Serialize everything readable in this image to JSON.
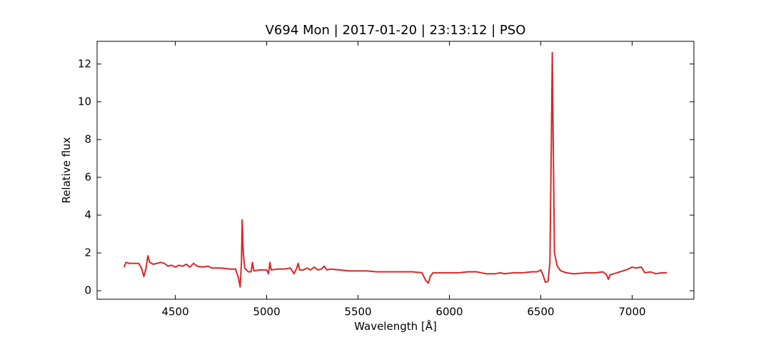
{
  "chart_data": {
    "type": "line",
    "title": "V694 Mon | 2017-01-20 | 23:13:12 | PSO",
    "xlabel": "Wavelength [Å]",
    "ylabel": "Relative flux",
    "color": "#d62728",
    "x": [
      4220,
      4230,
      4250,
      4280,
      4300,
      4315,
      4328,
      4340,
      4350,
      4360,
      4380,
      4400,
      4420,
      4440,
      4460,
      4480,
      4500,
      4520,
      4540,
      4560,
      4580,
      4600,
      4620,
      4650,
      4680,
      4700,
      4750,
      4800,
      4830,
      4845,
      4855,
      4862,
      4866,
      4872,
      4880,
      4900,
      4915,
      4922,
      4930,
      4960,
      5000,
      5010,
      5018,
      5025,
      5060,
      5100,
      5130,
      5150,
      5165,
      5172,
      5180,
      5200,
      5220,
      5240,
      5260,
      5280,
      5300,
      5315,
      5330,
      5350,
      5400,
      5450,
      5500,
      5550,
      5600,
      5650,
      5700,
      5750,
      5800,
      5850,
      5870,
      5885,
      5895,
      5910,
      5950,
      6000,
      6050,
      6100,
      6150,
      6200,
      6250,
      6280,
      6300,
      6350,
      6400,
      6450,
      6480,
      6500,
      6510,
      6525,
      6540,
      6550,
      6558,
      6563,
      6568,
      6575,
      6590,
      6610,
      6640,
      6680,
      6750,
      6800,
      6840,
      6860,
      6870,
      6880,
      6900,
      6950,
      6980,
      7000,
      7020,
      7050,
      7070,
      7100,
      7130,
      7160,
      7190
    ],
    "values": [
      1.25,
      1.5,
      1.45,
      1.45,
      1.45,
      1.2,
      0.75,
      1.2,
      1.85,
      1.5,
      1.4,
      1.45,
      1.5,
      1.45,
      1.3,
      1.35,
      1.25,
      1.35,
      1.3,
      1.4,
      1.25,
      1.45,
      1.3,
      1.25,
      1.3,
      1.2,
      1.2,
      1.15,
      1.15,
      0.7,
      0.2,
      1.5,
      3.75,
      2.0,
      1.2,
      1.0,
      1.0,
      1.5,
      1.05,
      1.1,
      1.1,
      0.9,
      1.5,
      1.1,
      1.15,
      1.15,
      1.2,
      0.9,
      1.2,
      1.45,
      1.1,
      1.1,
      1.2,
      1.1,
      1.25,
      1.1,
      1.15,
      1.3,
      1.1,
      1.15,
      1.1,
      1.05,
      1.05,
      1.05,
      1.0,
      1.0,
      1.0,
      1.0,
      1.0,
      0.95,
      0.55,
      0.4,
      0.75,
      0.95,
      0.95,
      0.95,
      0.95,
      1.0,
      1.0,
      0.9,
      0.9,
      0.95,
      0.9,
      0.95,
      0.95,
      1.0,
      1.0,
      1.1,
      0.9,
      0.45,
      0.5,
      1.5,
      8,
      12.6,
      8,
      2.0,
      1.3,
      1.05,
      0.95,
      0.9,
      0.95,
      0.95,
      1.0,
      0.85,
      0.6,
      0.85,
      0.9,
      1.05,
      1.15,
      1.25,
      1.2,
      1.25,
      0.95,
      1.0,
      0.9,
      0.95,
      0.95
    ],
    "xlim": [
      4072,
      7338
    ],
    "ylim": [
      -0.45,
      13.2
    ],
    "xticks": [
      4500,
      5000,
      5500,
      6000,
      6500,
      7000
    ],
    "yticks": [
      0,
      2,
      4,
      6,
      8,
      10,
      12
    ]
  }
}
